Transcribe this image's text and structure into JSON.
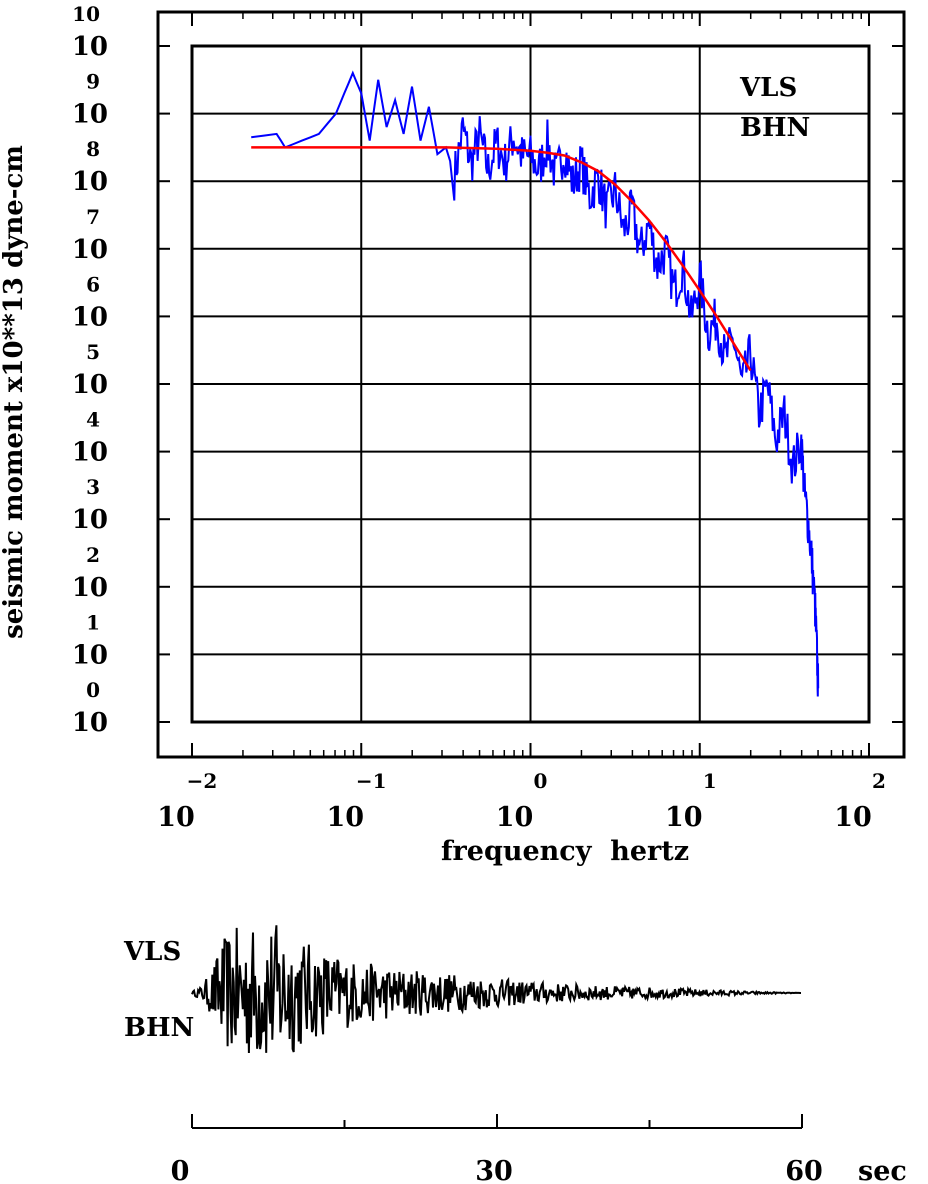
{
  "chart_data": [
    {
      "type": "line",
      "xlabel": "frequency  hertz",
      "ylabel": "seismic moment x10**13 dyne-cm",
      "x_scale": "log",
      "y_scale": "log",
      "xlim_log10": [
        -2,
        2
      ],
      "ylim_log10": [
        0,
        10
      ],
      "grid": true,
      "x_ticks": [
        {
          "base": "10",
          "exp": "−2"
        },
        {
          "base": "10",
          "exp": "−1"
        },
        {
          "base": "10",
          "exp": "0"
        },
        {
          "base": "10",
          "exp": "1"
        },
        {
          "base": "10",
          "exp": "2"
        }
      ],
      "y_ticks": [
        {
          "base": "10",
          "exp": "0"
        },
        {
          "base": "10",
          "exp": "1"
        },
        {
          "base": "10",
          "exp": "2"
        },
        {
          "base": "10",
          "exp": "3"
        },
        {
          "base": "10",
          "exp": "4"
        },
        {
          "base": "10",
          "exp": "5"
        },
        {
          "base": "10",
          "exp": "6"
        },
        {
          "base": "10",
          "exp": "7"
        },
        {
          "base": "10",
          "exp": "8"
        },
        {
          "base": "10",
          "exp": "9"
        },
        {
          "base": "10",
          "exp": "10"
        }
      ],
      "annotations": {
        "station": "VLS",
        "component": "BHN"
      },
      "series": [
        {
          "color": "#0000ff",
          "log10_x": [
            -1.65,
            -1.5,
            -1.45,
            -1.35,
            -1.25,
            -1.15,
            -1.1,
            -1.05,
            -1.0,
            -0.95,
            -0.9,
            -0.85,
            -0.8,
            -0.75,
            -0.7,
            -0.65,
            -0.6,
            -0.55,
            -0.5,
            -0.45,
            -0.4,
            -0.35,
            -0.3,
            -0.25,
            -0.2,
            -0.15,
            -0.1,
            -0.05,
            0.0,
            0.05,
            0.1,
            0.15,
            0.2,
            0.25,
            0.3,
            0.35,
            0.4,
            0.45,
            0.5,
            0.55,
            0.6,
            0.65,
            0.7,
            0.75,
            0.8,
            0.85,
            0.9,
            0.95,
            1.0,
            1.05,
            1.1,
            1.15,
            1.2,
            1.25,
            1.3,
            1.35,
            1.4,
            1.45,
            1.5,
            1.55,
            1.6,
            1.62,
            1.64,
            1.66,
            1.68,
            1.69,
            1.7
          ],
          "log10_y": [
            8.65,
            8.7,
            8.5,
            8.6,
            8.7,
            9.0,
            9.3,
            9.6,
            9.3,
            8.6,
            9.5,
            8.8,
            9.2,
            8.7,
            9.4,
            8.6,
            9.1,
            8.4,
            8.5,
            8.1,
            8.8,
            8.3,
            8.7,
            8.2,
            8.6,
            8.3,
            8.7,
            8.4,
            8.4,
            8.2,
            8.6,
            8.1,
            8.5,
            8.0,
            8.3,
            7.8,
            8.1,
            7.6,
            7.9,
            7.3,
            7.6,
            7.0,
            7.4,
            6.8,
            7.0,
            6.4,
            6.8,
            6.0,
            6.6,
            5.8,
            6.0,
            5.4,
            5.7,
            5.0,
            5.5,
            4.6,
            5.0,
            4.2,
            4.6,
            3.8,
            4.2,
            3.4,
            3.0,
            2.5,
            1.8,
            1.2,
            0.5
          ]
        },
        {
          "color": "#ff0000",
          "log10_x": [
            -1.65,
            -1.0,
            -0.5,
            -0.2,
            0.0,
            0.1,
            0.2,
            0.3,
            0.4,
            0.5,
            0.6,
            0.7,
            0.8,
            0.9,
            1.0,
            1.1,
            1.2,
            1.3
          ],
          "log10_y": [
            8.5,
            8.5,
            8.5,
            8.48,
            8.45,
            8.42,
            8.38,
            8.28,
            8.15,
            7.95,
            7.7,
            7.42,
            7.1,
            6.75,
            6.38,
            6.0,
            5.6,
            5.2
          ]
        }
      ]
    },
    {
      "type": "line",
      "annotations": {
        "station": "VLS",
        "component": "BHN"
      },
      "x_unit": "sec",
      "xlim": [
        0,
        60
      ],
      "x_ticks": [
        "0",
        "30",
        "60"
      ],
      "series": [
        {
          "color": "#000000",
          "envelope_t": [
            0,
            1,
            2,
            3,
            4,
            6,
            8,
            10,
            12,
            14,
            16,
            18,
            20,
            25,
            30,
            35,
            40,
            45,
            50,
            55,
            60
          ],
          "envelope_amp": [
            0.02,
            0.1,
            0.35,
            0.75,
            0.9,
            0.95,
            1.0,
            0.85,
            0.65,
            0.55,
            0.45,
            0.4,
            0.35,
            0.28,
            0.2,
            0.14,
            0.1,
            0.08,
            0.05,
            0.02,
            0.0
          ]
        }
      ]
    }
  ]
}
